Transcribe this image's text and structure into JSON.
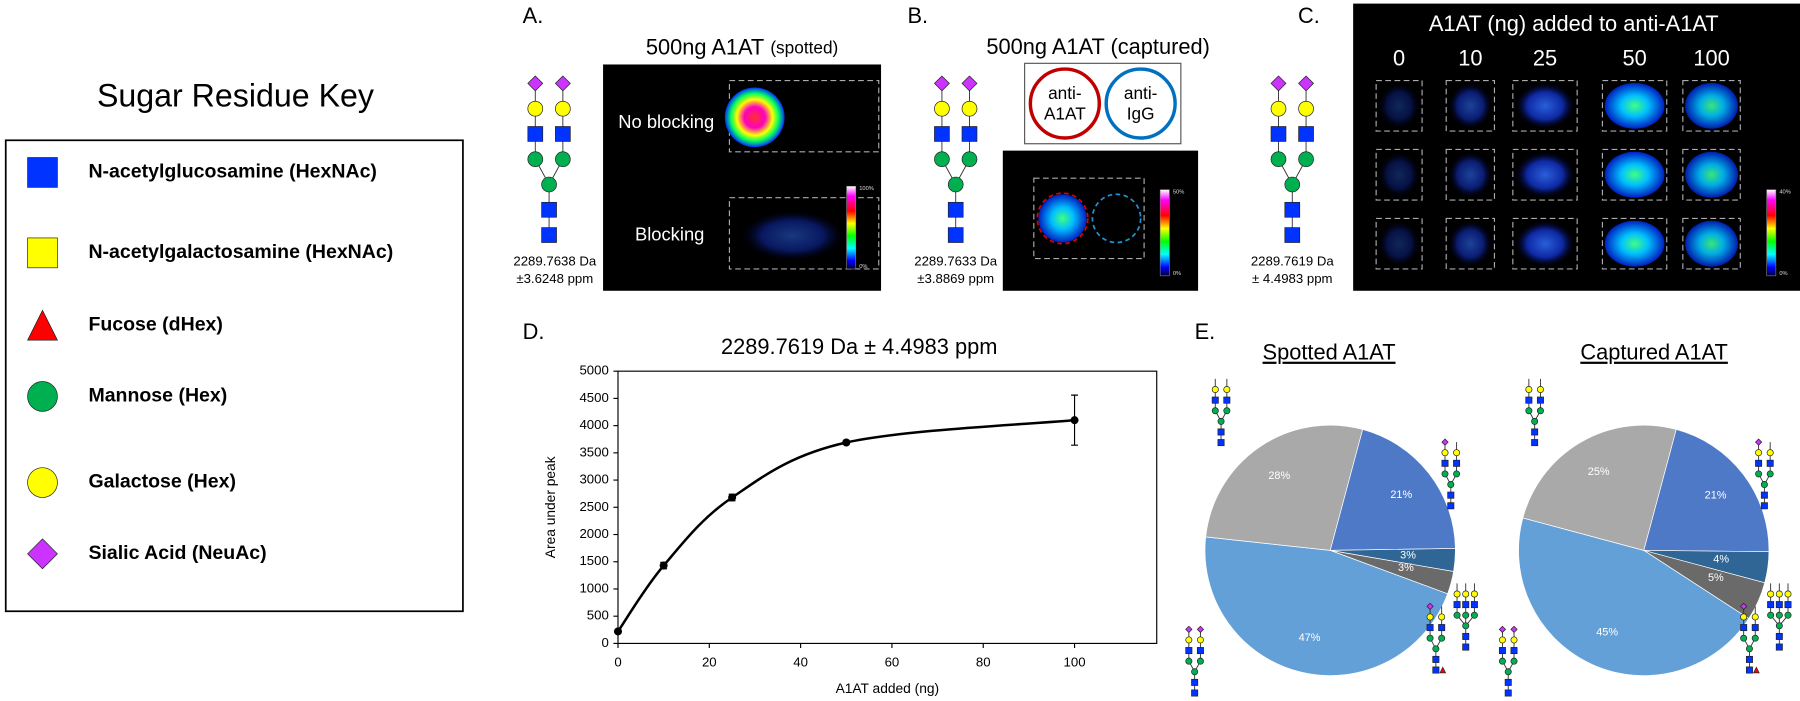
{
  "key": {
    "title": "Sugar Residue Key",
    "items": [
      "N-acetylglucosamine (HexNAc)",
      "N-acetylgalactosamine (HexNAc)",
      "Fucose (dHex)",
      "Mannose (Hex)",
      "Galactose (Hex)",
      "Sialic Acid (NeuAc)"
    ]
  },
  "panel_a": {
    "label": "A.",
    "title": "500ng A1AT",
    "title_note": "(spotted)",
    "rows": [
      "No blocking",
      "Blocking"
    ],
    "mass": "2289.7638 Da",
    "tolerance": "±3.6248 ppm",
    "colorbar": [
      "100%",
      "0%"
    ]
  },
  "panel_b": {
    "label": "B.",
    "title": "500ng A1AT (captured)",
    "antibodies": [
      [
        "anti-",
        "A1AT"
      ],
      [
        "anti-",
        "IgG"
      ]
    ],
    "mass": "2289.7633 Da",
    "tolerance": "±3.8869 ppm",
    "colorbar": [
      "50%",
      "0%"
    ]
  },
  "panel_c": {
    "label": "C.",
    "title": "A1AT (ng) added to anti-A1AT",
    "columns": [
      "0",
      "10",
      "25",
      "50",
      "100"
    ],
    "mass": "2289.7619 Da",
    "tolerance": "± 4.4983 ppm",
    "colorbar": [
      "40%",
      "0%"
    ]
  },
  "panel_d_label": "D.",
  "panel_e_label": "E.",
  "chart_data": [
    {
      "type": "line",
      "title": "2289.7619 Da ± 4.4983 ppm",
      "x_label": "A1AT added (ng)",
      "y_label": "Area under peak",
      "x": [
        0,
        10,
        25,
        50,
        100
      ],
      "values": [
        220,
        1430,
        2680,
        3690,
        4100
      ],
      "errors": [
        30,
        60,
        60,
        30,
        460
      ],
      "color": "#000000",
      "xlim": [
        0,
        118
      ],
      "ylim": [
        0,
        5000
      ],
      "xticks": [
        0,
        20,
        40,
        60,
        80,
        100
      ],
      "yticks": [
        0,
        500,
        1000,
        1500,
        2000,
        2500,
        3000,
        3500,
        4000,
        4500,
        5000
      ],
      "grid": false
    },
    {
      "type": "pie",
      "title": "Spotted A1AT",
      "values": [
        21,
        3,
        3,
        47,
        28
      ],
      "value_labels": [
        "21%",
        "3%",
        "3%",
        "47%",
        "28%"
      ],
      "colors": [
        "#4472c4",
        "#255e91",
        "#636363",
        "#5b9bd5",
        "#a5a5a5"
      ]
    },
    {
      "type": "pie",
      "title": "Captured A1AT",
      "values": [
        21,
        4,
        5,
        45,
        25
      ],
      "value_labels": [
        "21%",
        "4%",
        "5%",
        "45%",
        "25%"
      ],
      "colors": [
        "#4472c4",
        "#255e91",
        "#636363",
        "#5b9bd5",
        "#a5a5a5"
      ]
    }
  ]
}
